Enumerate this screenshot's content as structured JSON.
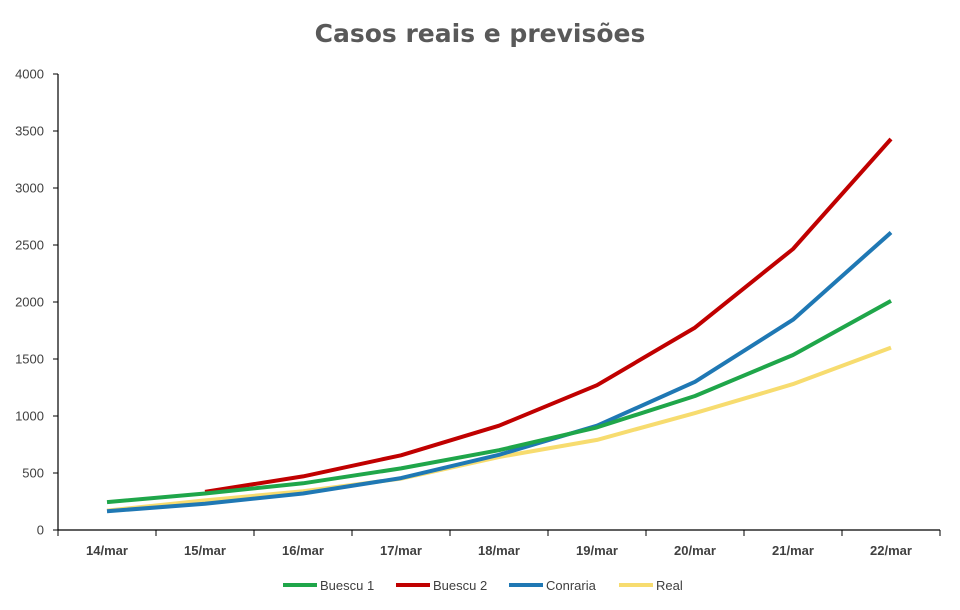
{
  "chart_data": {
    "type": "line",
    "title": "Casos reais e previsões",
    "xlabel": "",
    "ylabel": "",
    "x": [
      "14/mar",
      "15/mar",
      "16/mar",
      "17/mar",
      "18/mar",
      "19/mar",
      "20/mar",
      "21/mar",
      "22/mar"
    ],
    "yticks": [
      "0",
      "500",
      "1000",
      "1500",
      "2000",
      "2500",
      "3000",
      "3500",
      "4000"
    ],
    "ylim": [
      0,
      4000
    ],
    "grid": false,
    "legend_position": "bottom",
    "series": [
      {
        "name": "Buescu 1",
        "color": "#1fa64a",
        "values": [
          245,
          320,
          410,
          540,
          700,
          900,
          1175,
          1535,
          2010
        ]
      },
      {
        "name": "Buescu 2",
        "color": "#c00000",
        "values": [
          null,
          335,
          470,
          655,
          915,
          1270,
          1775,
          2465,
          3430
        ]
      },
      {
        "name": "Conraria",
        "color": "#1f78b4",
        "values": [
          165,
          230,
          320,
          455,
          660,
          915,
          1300,
          1845,
          2610
        ]
      },
      {
        "name": "Real",
        "color": "#f7dc6f",
        "values": [
          170,
          260,
          340,
          450,
          640,
          790,
          1025,
          1280,
          1600
        ]
      }
    ]
  }
}
